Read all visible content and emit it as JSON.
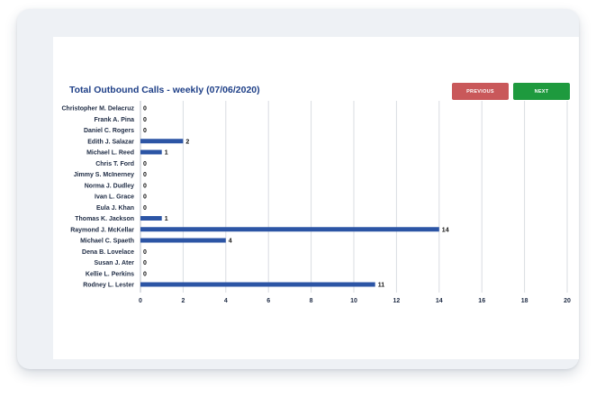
{
  "header": {
    "title": "Total Outbound Calls - weekly (07/06/2020)",
    "previous_label": "PREVIOUS",
    "next_label": "NEXT"
  },
  "colors": {
    "bar": "#2c55a5",
    "title": "#1e3f87",
    "previous_button": "#c9585a",
    "next_button": "#1e9a3e",
    "grid": "#d9dce2"
  },
  "chart_data": {
    "type": "bar",
    "orientation": "horizontal",
    "title": "Total Outbound Calls - weekly (07/06/2020)",
    "categories": [
      "Christopher M. Delacruz",
      "Frank A. Pina",
      "Daniel C. Rogers",
      "Edith J. Salazar",
      "Michael L. Reed",
      "Chris T. Ford",
      "Jimmy S. McInerney",
      "Norma J. Dudley",
      "Ivan L. Grace",
      "Eula J. Khan",
      "Thomas K. Jackson",
      "Raymond J. McKellar",
      "Michael C. Spaeth",
      "Dena B. Lovelace",
      "Susan J. Ater",
      "Kellie L. Perkins",
      "Rodney L. Lester"
    ],
    "values": [
      0,
      0,
      0,
      2,
      1,
      0,
      0,
      0,
      0,
      0,
      1,
      14,
      4,
      0,
      0,
      0,
      11
    ],
    "xlim": [
      0,
      20
    ],
    "xticks": [
      0,
      2,
      4,
      6,
      8,
      10,
      12,
      14,
      16,
      18,
      20
    ],
    "grid": true,
    "legend": "none"
  }
}
